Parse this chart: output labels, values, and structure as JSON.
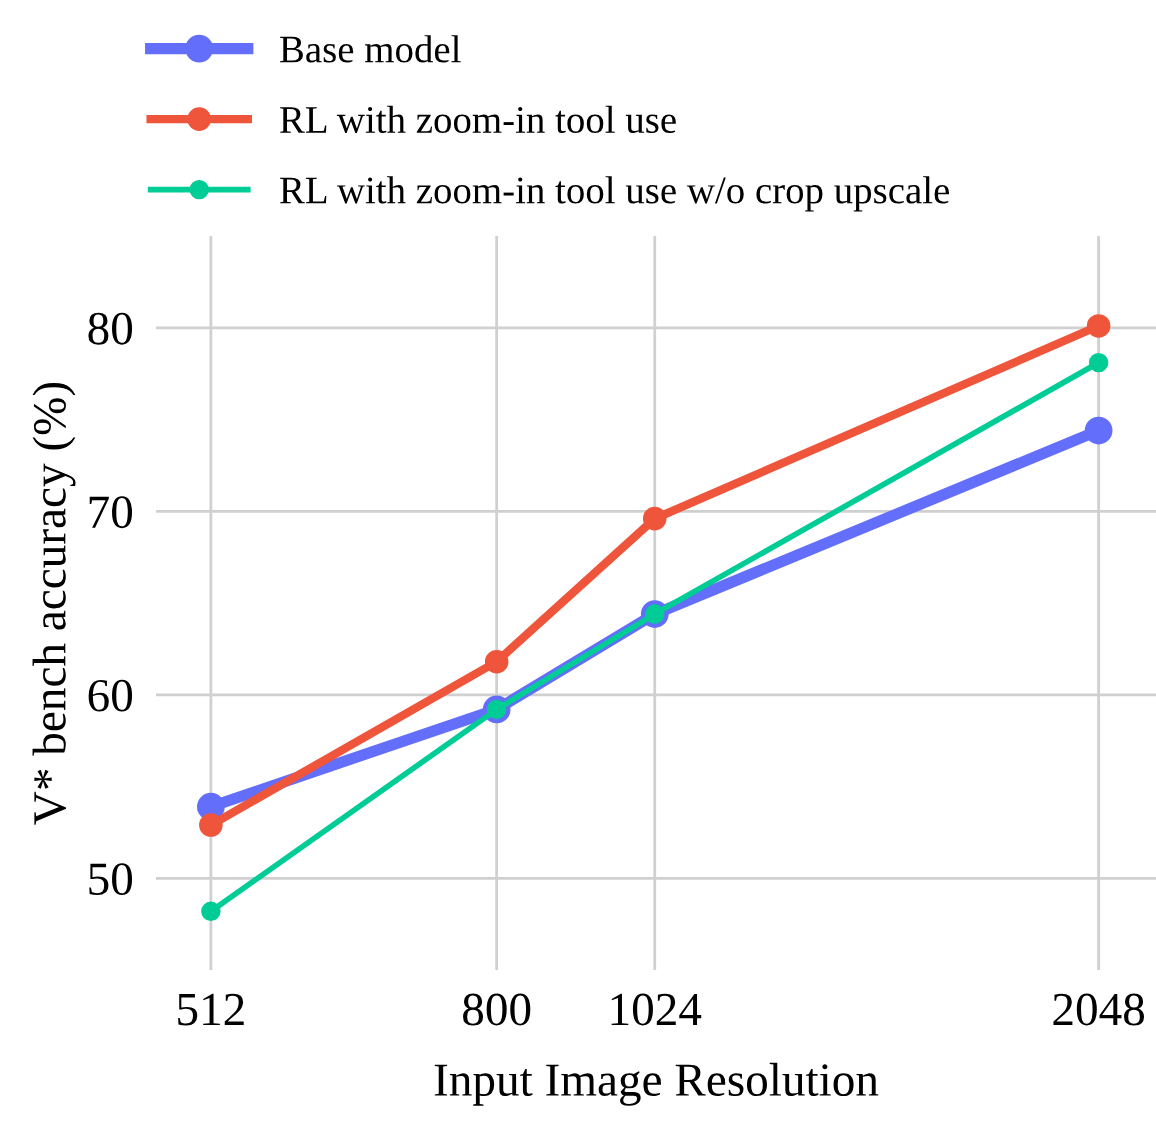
{
  "chart_data": {
    "type": "line",
    "xlabel": "Input Image Resolution",
    "ylabel": "V* bench accuracy (%)",
    "x": [
      512,
      800,
      1024,
      2048
    ],
    "series": [
      {
        "name": "Base model",
        "color": "#636efa",
        "values": [
          53.9,
          59.2,
          64.4,
          74.4
        ]
      },
      {
        "name": "RL with zoom-in tool use",
        "color": "#ef553b",
        "values": [
          52.9,
          61.8,
          69.6,
          80.1
        ]
      },
      {
        "name": "RL with zoom-in tool use w/o crop upscale",
        "color": "#00cc96",
        "values": [
          48.2,
          59.2,
          64.4,
          78.1
        ]
      }
    ],
    "log": "x",
    "xlim": [
      470,
      2240
    ],
    "xticks": [
      512,
      800,
      1024,
      2048
    ],
    "ylim": [
      45,
      85
    ],
    "yticks": [
      50,
      60,
      70,
      80
    ],
    "grid": true,
    "legend": "top left",
    "marker": "circle",
    "line_style": "solid"
  }
}
